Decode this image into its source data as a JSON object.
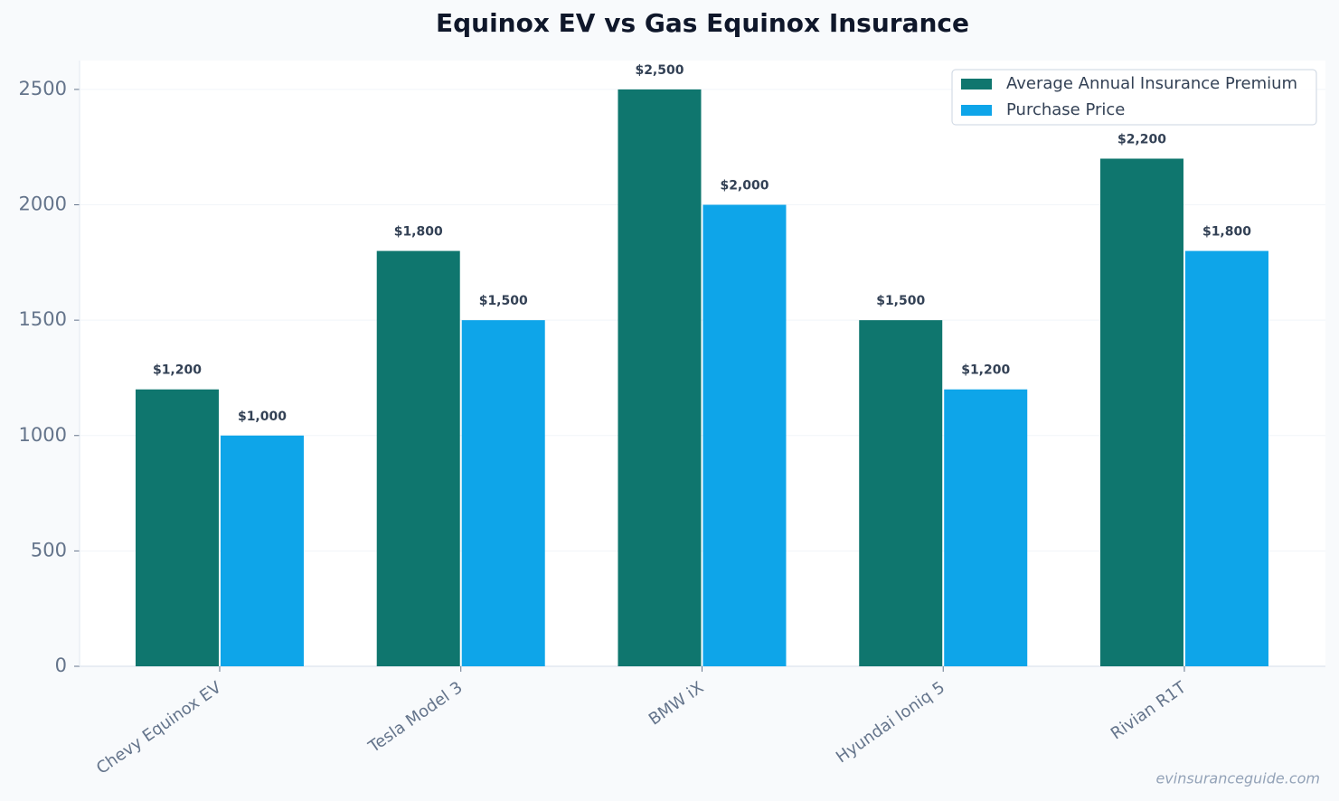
{
  "chart_data": {
    "type": "bar",
    "title": "Equinox EV vs Gas Equinox Insurance",
    "categories": [
      "Chevy Equinox EV",
      "Tesla Model 3",
      "BMW iX",
      "Hyundai Ioniq 5",
      "Rivian R1T"
    ],
    "series": [
      {
        "name": "Average Annual Insurance Premium",
        "color": "#0f766e",
        "values": [
          1200,
          1800,
          2500,
          1500,
          2200
        ],
        "value_labels": [
          "$1,200",
          "$1,800",
          "$2,500",
          "$1,500",
          "$2,200"
        ]
      },
      {
        "name": "Purchase Price",
        "color": "#0ea5e9",
        "values": [
          1000,
          1500,
          2000,
          1200,
          1800
        ],
        "value_labels": [
          "$1,000",
          "$1,500",
          "$2,000",
          "$1,200",
          "$1,800"
        ]
      }
    ],
    "ylim": [
      0,
      2625
    ],
    "yticks": [
      0,
      500,
      1000,
      1500,
      2000,
      2500
    ],
    "grid": true,
    "legend": "upper right",
    "watermark": "evinsuranceguide.com"
  }
}
